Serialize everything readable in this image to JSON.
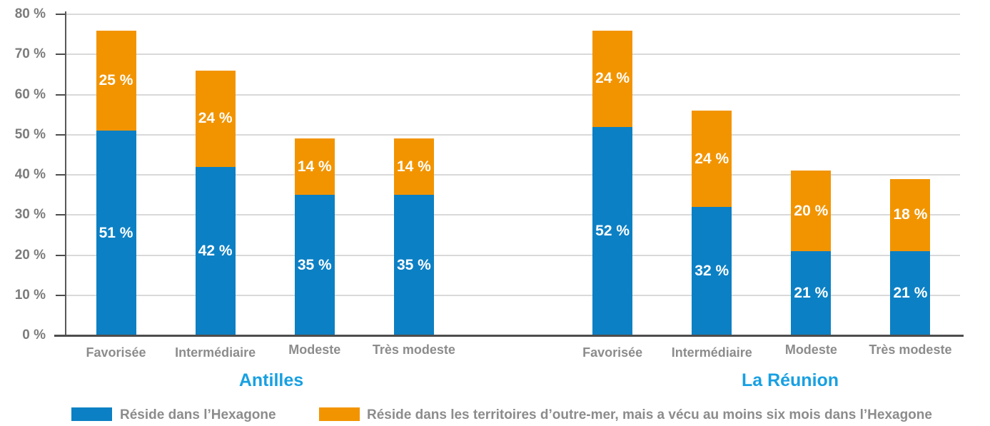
{
  "chart_data": {
    "type": "bar",
    "stacked": true,
    "unit": "%",
    "ylim": [
      0,
      80
    ],
    "ytick_step": 10,
    "grid": true,
    "legend_position": "bottom",
    "categories": [
      "Favorisée",
      "Intermédiaire",
      "Modeste",
      "Très modeste"
    ],
    "groups": [
      {
        "label": "Antilles",
        "series": [
          {
            "name": "Réside dans l’Hexagone",
            "values": [
              51,
              42,
              35,
              35
            ]
          },
          {
            "name": "Réside dans les territoires d’outre-mer, mais a vécu au moins six mois dans l’Hexagone",
            "values": [
              25,
              24,
              14,
              14
            ]
          }
        ]
      },
      {
        "label": "La Réunion",
        "series": [
          {
            "name": "Réside dans l’Hexagone",
            "values": [
              52,
              32,
              21,
              21
            ]
          },
          {
            "name": "Réside dans les territoires d’outre-mer, mais a vécu au moins six mois dans l’Hexagone",
            "values": [
              24,
              24,
              20,
              18
            ]
          }
        ]
      }
    ],
    "series_colors": [
      "#0c80c4",
      "#f29400"
    ],
    "group_label_color": "#18a0e2",
    "axis_color": "#4d4d4d",
    "grid_color": "#d9d9d9",
    "value_label_format": "{v} %"
  },
  "legend": {
    "items": [
      {
        "label": "Réside dans l’Hexagone",
        "color": "#0c80c4"
      },
      {
        "label": "Réside dans les territoires d’outre-mer, mais a vécu au moins six mois dans l’Hexagone",
        "color": "#f29400"
      }
    ]
  }
}
